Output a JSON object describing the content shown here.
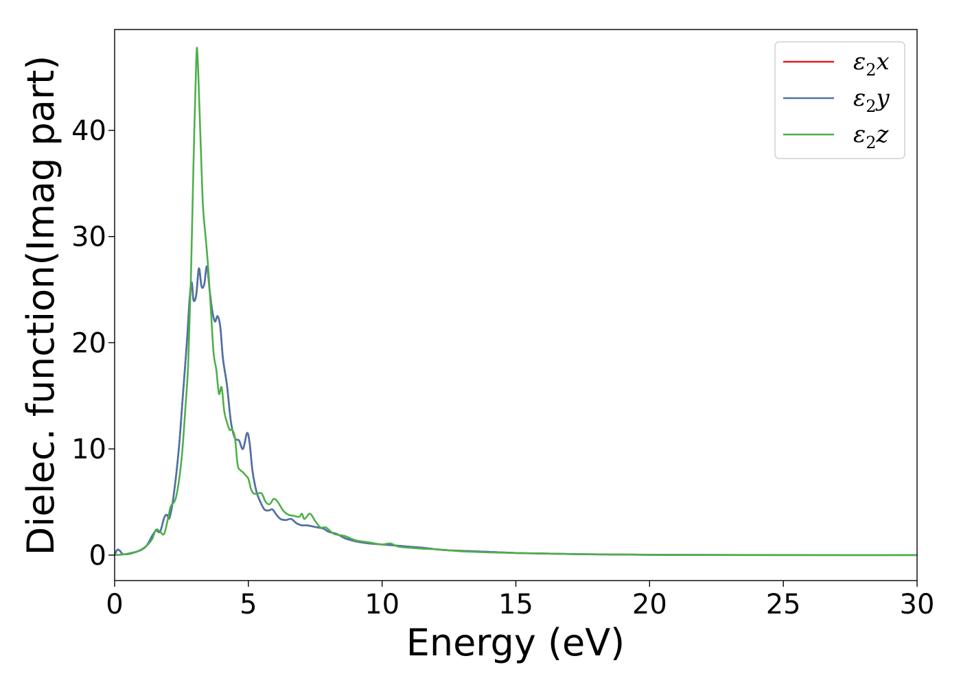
{
  "chart_data": {
    "type": "line",
    "title": "",
    "xlabel": "Energy (eV)",
    "ylabel": "Dielec. function(Imag part)",
    "xlim": [
      0,
      30
    ],
    "ylim": [
      -2.4,
      49.5
    ],
    "xticks": [
      "0",
      "5",
      "10",
      "15",
      "20",
      "25",
      "30"
    ],
    "yticks": [
      "0",
      "10",
      "20",
      "30",
      "40"
    ],
    "grid": false,
    "legend_position": "top-right",
    "series": [
      {
        "name": "ε₂x",
        "legend_base": "ε",
        "legend_sub": "2",
        "legend_tail": "x",
        "color": "#e41a1c",
        "x": [
          0,
          0.1,
          0.2,
          0.3,
          0.5,
          0.8,
          1.0,
          1.2,
          1.4,
          1.55,
          1.7,
          1.85,
          1.95,
          2.05,
          2.2,
          2.4,
          2.55,
          2.7,
          2.8,
          2.88,
          2.95,
          3.05,
          3.15,
          3.25,
          3.35,
          3.45,
          3.55,
          3.65,
          3.75,
          3.85,
          3.95,
          4.05,
          4.2,
          4.35,
          4.5,
          4.65,
          4.8,
          4.95,
          5.05,
          5.15,
          5.3,
          5.45,
          5.6,
          5.75,
          5.9,
          6.05,
          6.2,
          6.4,
          6.6,
          6.8,
          7.0,
          7.2,
          7.4,
          7.6,
          7.8,
          8.0,
          8.3,
          8.6,
          9.0,
          9.5,
          10.0,
          10.5,
          11.0,
          11.5,
          12.0,
          12.5,
          13.0,
          13.5,
          14.0,
          15.0,
          16.0,
          17.0,
          18.0,
          20.0,
          22.0,
          25.0,
          30.0
        ],
        "values": [
          0,
          0.5,
          0.4,
          0.1,
          0.1,
          0.3,
          0.5,
          0.9,
          1.8,
          2.3,
          2.2,
          3.5,
          3.8,
          3.5,
          5.5,
          10.0,
          15.0,
          20.0,
          24.0,
          25.7,
          24.0,
          24.5,
          27.0,
          25.3,
          25.5,
          27.2,
          25.0,
          23.0,
          22.0,
          22.5,
          21.5,
          18.5,
          16.0,
          12.5,
          11.0,
          10.8,
          10.0,
          11.5,
          10.5,
          8.0,
          6.0,
          5.0,
          4.3,
          4.2,
          4.3,
          3.8,
          3.4,
          3.3,
          3.4,
          3.0,
          2.8,
          2.8,
          2.7,
          2.6,
          2.5,
          2.2,
          2.0,
          1.6,
          1.3,
          1.1,
          1.0,
          0.9,
          0.8,
          0.7,
          0.55,
          0.45,
          0.4,
          0.35,
          0.3,
          0.2,
          0.15,
          0.1,
          0.07,
          0.03,
          0.01,
          0,
          0
        ]
      },
      {
        "name": "ε₂y",
        "legend_base": "ε",
        "legend_sub": "2",
        "legend_tail": "y",
        "color": "#4a74aa",
        "x": [
          0,
          0.1,
          0.2,
          0.3,
          0.5,
          0.8,
          1.0,
          1.2,
          1.4,
          1.55,
          1.7,
          1.85,
          1.95,
          2.05,
          2.2,
          2.4,
          2.55,
          2.7,
          2.8,
          2.88,
          2.95,
          3.05,
          3.15,
          3.25,
          3.35,
          3.45,
          3.55,
          3.65,
          3.75,
          3.85,
          3.95,
          4.05,
          4.2,
          4.35,
          4.5,
          4.65,
          4.8,
          4.95,
          5.05,
          5.15,
          5.3,
          5.45,
          5.6,
          5.75,
          5.9,
          6.05,
          6.2,
          6.4,
          6.6,
          6.8,
          7.0,
          7.2,
          7.4,
          7.6,
          7.8,
          8.0,
          8.3,
          8.6,
          9.0,
          9.5,
          10.0,
          10.5,
          11.0,
          11.5,
          12.0,
          12.5,
          13.0,
          13.5,
          14.0,
          15.0,
          16.0,
          17.0,
          18.0,
          20.0,
          22.0,
          25.0,
          30.0
        ],
        "values": [
          0,
          0.5,
          0.4,
          0.1,
          0.1,
          0.3,
          0.5,
          0.9,
          1.8,
          2.3,
          2.2,
          3.5,
          3.8,
          3.5,
          5.5,
          10.0,
          15.0,
          20.0,
          24.0,
          25.7,
          24.0,
          24.5,
          27.0,
          25.3,
          25.5,
          27.2,
          25.0,
          23.0,
          22.0,
          22.5,
          21.5,
          18.5,
          16.0,
          12.5,
          11.0,
          10.8,
          10.0,
          11.5,
          10.5,
          8.0,
          6.0,
          5.0,
          4.3,
          4.2,
          4.3,
          3.8,
          3.4,
          3.3,
          3.4,
          3.0,
          2.8,
          2.8,
          2.7,
          2.6,
          2.5,
          2.2,
          2.0,
          1.6,
          1.3,
          1.1,
          1.0,
          0.9,
          0.8,
          0.7,
          0.55,
          0.45,
          0.4,
          0.35,
          0.3,
          0.2,
          0.15,
          0.1,
          0.07,
          0.03,
          0.01,
          0,
          0
        ]
      },
      {
        "name": "ε₂z",
        "legend_base": "ε",
        "legend_sub": "2",
        "legend_tail": "z",
        "color": "#4daf4a",
        "x": [
          0,
          0.3,
          0.6,
          0.9,
          1.2,
          1.4,
          1.55,
          1.7,
          1.85,
          2.0,
          2.1,
          2.3,
          2.5,
          2.65,
          2.75,
          2.85,
          2.95,
          3.05,
          3.1,
          3.2,
          3.3,
          3.4,
          3.5,
          3.6,
          3.7,
          3.8,
          3.9,
          4.0,
          4.1,
          4.2,
          4.3,
          4.4,
          4.5,
          4.6,
          4.7,
          4.8,
          4.9,
          5.0,
          5.1,
          5.2,
          5.35,
          5.5,
          5.65,
          5.8,
          5.95,
          6.1,
          6.3,
          6.5,
          6.7,
          6.9,
          7.0,
          7.1,
          7.3,
          7.5,
          7.7,
          7.9,
          8.2,
          8.6,
          9.0,
          9.5,
          10.0,
          10.3,
          10.6,
          11.0,
          11.5,
          12.0,
          12.5,
          13.0,
          13.5,
          14.0,
          15.0,
          16.0,
          17.0,
          18.0,
          20.0,
          22.0,
          25.0,
          30.0
        ],
        "values": [
          0,
          0.05,
          0.2,
          0.4,
          0.9,
          1.5,
          2.4,
          2.2,
          2.0,
          3.5,
          4.6,
          5.5,
          9.0,
          14.0,
          18.0,
          26.0,
          37.0,
          46.5,
          47.0,
          40.0,
          33.0,
          30.0,
          27.0,
          23.0,
          19.0,
          17.5,
          15.2,
          15.8,
          13.5,
          12.5,
          11.8,
          11.8,
          11.0,
          8.5,
          8.0,
          7.8,
          7.5,
          7.2,
          6.2,
          5.8,
          5.8,
          5.8,
          5.0,
          4.8,
          5.3,
          5.0,
          4.2,
          3.8,
          3.7,
          3.6,
          3.9,
          3.4,
          3.9,
          3.2,
          2.6,
          2.6,
          2.0,
          1.8,
          1.4,
          1.2,
          1.0,
          1.1,
          0.8,
          0.7,
          0.6,
          0.55,
          0.45,
          0.35,
          0.3,
          0.25,
          0.2,
          0.15,
          0.1,
          0.08,
          0.04,
          0.02,
          0.01,
          0
        ]
      }
    ]
  }
}
